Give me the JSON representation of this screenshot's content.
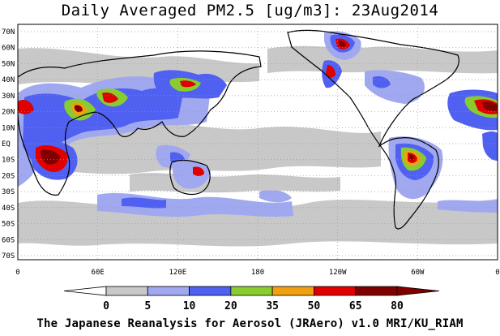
{
  "title": "Daily Averaged PM2.5 [ug/m3]: 23Aug2014",
  "footer": "The Japanese Reanalysis for Aerosol (JRAero) v1.0 MRI/KU_RIAM",
  "map": {
    "lat_ticks": [
      "70N",
      "60N",
      "50N",
      "40N",
      "30N",
      "20N",
      "10N",
      "EQ",
      "10S",
      "20S",
      "30S",
      "40S",
      "50S",
      "60S",
      "70S"
    ],
    "lon_ticks": [
      "0",
      "60E",
      "120E",
      "180",
      "120W",
      "60W",
      "0"
    ]
  },
  "colorbar": {
    "levels": [
      "0",
      "5",
      "10",
      "20",
      "35",
      "50",
      "65",
      "80"
    ],
    "colors": [
      "#ffffff",
      "#c8c8c8",
      "#a0a8f0",
      "#5060f0",
      "#88cc30",
      "#f0a010",
      "#e00000",
      "#800000"
    ]
  }
}
